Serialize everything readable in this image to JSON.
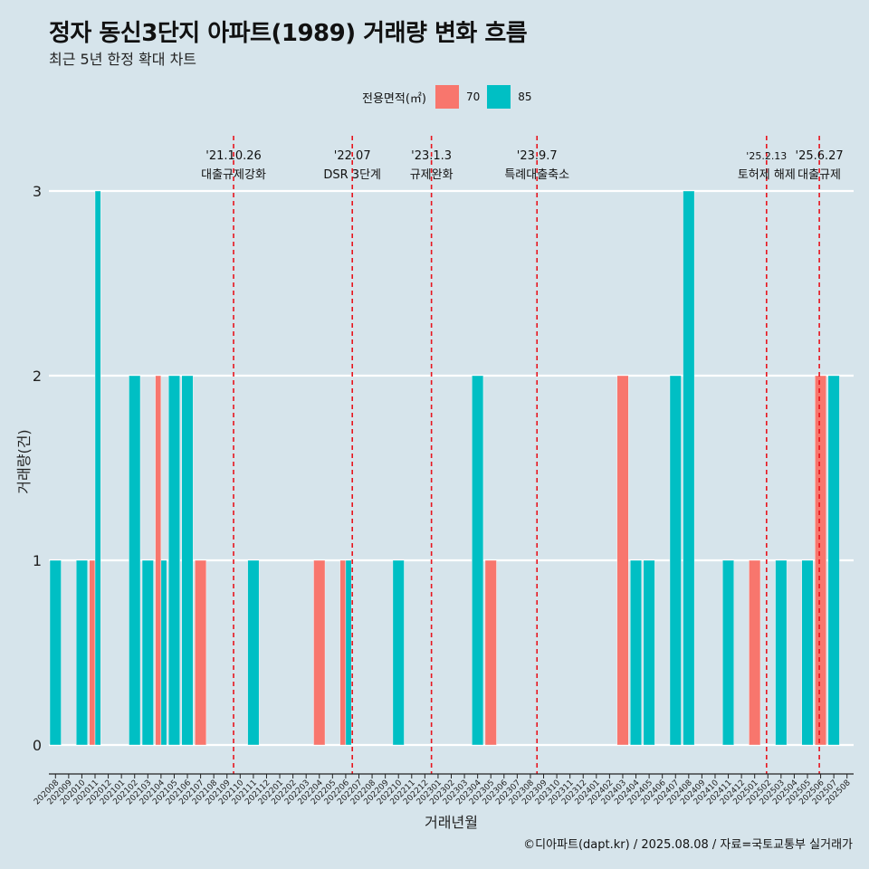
{
  "title": "정자 동신3단지 아파트(1989) 거래량 변화 흐름",
  "subtitle": "최근 5년 한정 확대 차트",
  "legend": {
    "title": "전용면적(㎡)",
    "items": [
      {
        "label": "70",
        "color": "#f8766d"
      },
      {
        "label": "85",
        "color": "#00bfc4"
      }
    ]
  },
  "caption": "©디아파트(dapt.kr) / 2025.08.08 / 자료=국토교통부 실거래가",
  "chart_data": {
    "type": "bar",
    "xlabel": "거래년월",
    "ylabel": "거래량(건)",
    "ylim": [
      0,
      3
    ],
    "yticks": [
      0,
      1,
      2,
      3
    ],
    "grid": "horizontal",
    "legend_position": "top",
    "categories": [
      "202008",
      "202009",
      "202010",
      "202011",
      "202012",
      "202101",
      "202102",
      "202103",
      "202104",
      "202105",
      "202106",
      "202107",
      "202108",
      "202109",
      "202110",
      "202111",
      "202112",
      "202201",
      "202202",
      "202203",
      "202204",
      "202205",
      "202206",
      "202207",
      "202208",
      "202209",
      "202210",
      "202211",
      "202212",
      "202301",
      "202302",
      "202303",
      "202304",
      "202305",
      "202306",
      "202307",
      "202308",
      "202309",
      "202310",
      "202311",
      "202312",
      "202401",
      "202402",
      "202403",
      "202404",
      "202405",
      "202406",
      "202407",
      "202408",
      "202409",
      "202410",
      "202411",
      "202412",
      "202501",
      "202502",
      "202503",
      "202504",
      "202505",
      "202506",
      "202507",
      "202508"
    ],
    "series": [
      {
        "name": "70",
        "color": "#f8766d",
        "values": [
          0,
          0,
          0,
          1,
          0,
          0,
          0,
          0,
          2,
          0,
          0,
          1,
          0,
          0,
          0,
          0,
          0,
          0,
          0,
          0,
          1,
          0,
          1,
          0,
          0,
          0,
          0,
          0,
          0,
          0,
          0,
          0,
          0,
          1,
          0,
          0,
          0,
          0,
          0,
          0,
          0,
          0,
          0,
          2,
          0,
          0,
          0,
          0,
          0,
          0,
          0,
          0,
          0,
          1,
          0,
          0,
          0,
          0,
          2,
          0,
          0
        ]
      },
      {
        "name": "85",
        "color": "#00bfc4",
        "values": [
          1,
          0,
          1,
          3,
          0,
          0,
          2,
          1,
          1,
          2,
          2,
          0,
          0,
          0,
          0,
          1,
          0,
          0,
          0,
          0,
          0,
          0,
          1,
          0,
          0,
          0,
          1,
          0,
          0,
          0,
          0,
          0,
          2,
          0,
          0,
          0,
          0,
          0,
          0,
          0,
          0,
          0,
          0,
          0,
          1,
          1,
          0,
          2,
          3,
          0,
          0,
          1,
          0,
          0,
          0,
          1,
          0,
          1,
          0,
          2,
          0
        ]
      }
    ],
    "events": [
      {
        "date": "'21.10.26",
        "label": "대출규제강화",
        "at": 14,
        "offset": 0
      },
      {
        "date": "'22.07",
        "label": "DSR 3단계",
        "at": 23,
        "offset": 0
      },
      {
        "date": "'23.1.3",
        "label": "규제완화",
        "at": 29,
        "offset": 0
      },
      {
        "date": "'23.9.7",
        "label": "특례대출축소",
        "at": 37,
        "offset": 0
      },
      {
        "date": "'25.2.13",
        "label": "토허제 해제",
        "at": 54,
        "offset": 0.4
      },
      {
        "date": "'25.6.27",
        "label": "대출규제",
        "at": 58,
        "offset": 0.4
      }
    ]
  }
}
